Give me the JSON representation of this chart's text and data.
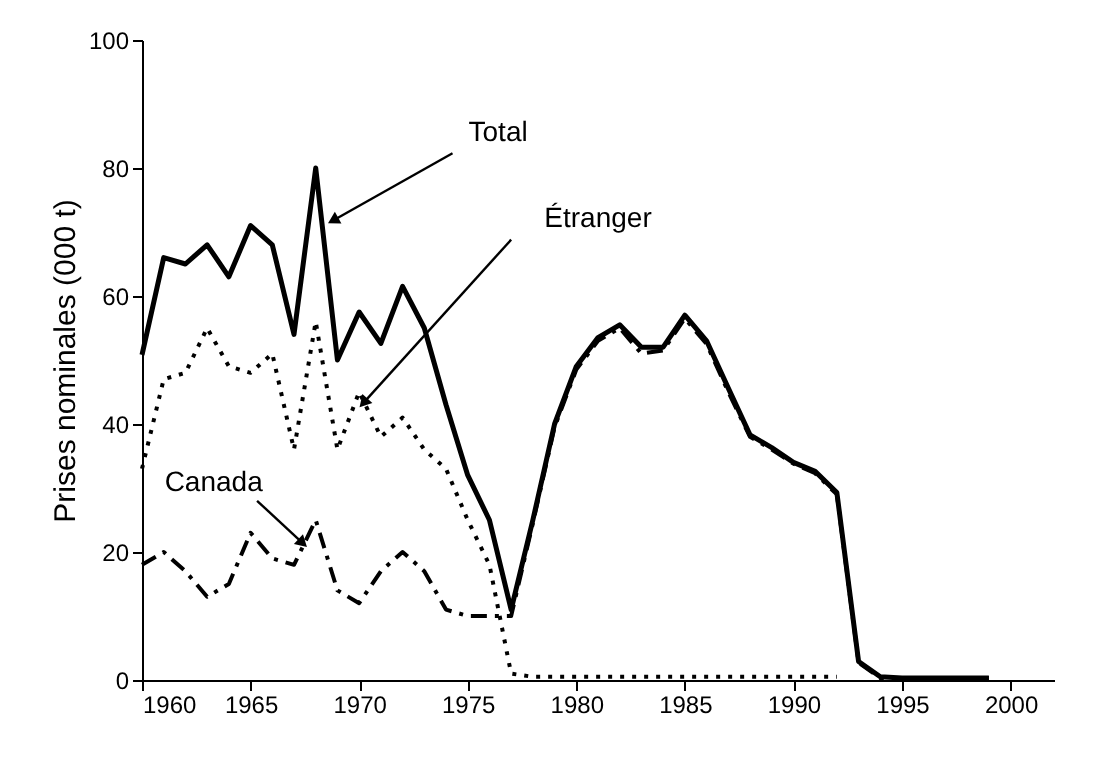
{
  "chart_data": {
    "type": "line",
    "ylabel": "Prises nominales (000 t)",
    "x": [
      1960,
      1961,
      1962,
      1963,
      1964,
      1965,
      1966,
      1967,
      1968,
      1969,
      1970,
      1971,
      1972,
      1973,
      1974,
      1975,
      1976,
      1977,
      1978,
      1979,
      1980,
      1981,
      1982,
      1983,
      1984,
      1985,
      1986,
      1987,
      1988,
      1989,
      1990,
      1991,
      1992,
      1993,
      1994,
      1995,
      1996,
      1997,
      1998,
      1999
    ],
    "series": [
      {
        "color": "#000000",
        "line_style": "solid",
        "values": [
          50.8,
          66,
          65,
          68,
          63,
          71,
          68,
          54,
          80,
          50,
          57.5,
          52.6,
          61.5,
          55,
          43,
          32,
          25,
          11,
          25,
          40,
          49,
          53.5,
          55.5,
          52,
          52,
          57,
          53,
          45.6,
          38.3,
          36.3,
          34,
          32.6,
          29.3,
          2.9,
          0.5,
          0.3,
          0.3,
          0.3,
          0.3,
          0.3
        ]
      },
      {
        "color": "#000000",
        "line_style": "dotted",
        "values": [
          33,
          47,
          48,
          55,
          49,
          48,
          51,
          36,
          56,
          36,
          45,
          38,
          41,
          36,
          33,
          25,
          18,
          1,
          0.5,
          0.5,
          0.5,
          0.5,
          0.5,
          0.5,
          0.5,
          0.5,
          0.5,
          0.5,
          0.5,
          0.5,
          0.5,
          0.5,
          0.5,
          null,
          null,
          null,
          null,
          null,
          null,
          null
        ]
      },
      {
        "color": "#000000",
        "line_style": "dashed",
        "values": [
          18,
          20,
          17,
          13,
          15,
          23,
          19,
          18,
          25,
          14,
          12,
          17,
          20,
          17,
          11,
          10,
          10,
          10,
          24.5,
          39.5,
          48.5,
          53,
          55,
          51,
          51.5,
          56.5,
          52.5,
          45,
          38,
          36,
          33.8,
          32.3,
          29,
          2.7,
          0.3,
          0.3,
          0.3,
          0.3,
          0.3,
          0.3
        ]
      }
    ],
    "xlim": [
      1960,
      2002
    ],
    "xticks": [
      1960,
      1965,
      1970,
      1975,
      1980,
      1985,
      1990,
      1995,
      2000
    ],
    "ylim": [
      0,
      100
    ],
    "yticks": [
      0,
      20,
      40,
      60,
      80,
      100
    ],
    "annotations": [
      {
        "text": "Total",
        "x": 1968.8,
        "y": 71.8
      },
      {
        "text": "Étranger",
        "x": 1970.2,
        "y": 43.3
      },
      {
        "text": "Canada",
        "x": 1967.4,
        "y": 21.4
      }
    ],
    "grid": false,
    "marker": "none"
  }
}
